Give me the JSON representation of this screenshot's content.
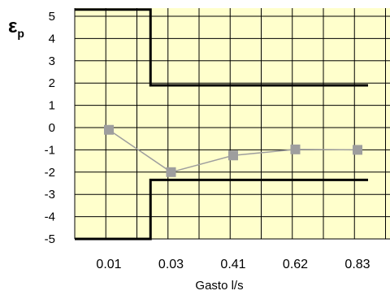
{
  "chart_data": {
    "type": "line",
    "title": "",
    "ylabel": "ε",
    "ylabel_subscript": "p",
    "xlabel": "Gasto l/s",
    "categories": [
      "0.01",
      "0.03",
      "0.41",
      "0.62",
      "0.83"
    ],
    "ylim": [
      -5,
      5
    ],
    "yticks": [
      5,
      4,
      3,
      2,
      1,
      0,
      -1,
      -2,
      -3,
      -4,
      -5
    ],
    "grid": true,
    "plot_background": "#ffffcc",
    "series": [
      {
        "values": [
          -0.1,
          -2.0,
          -1.25,
          -0.98,
          -1.0
        ],
        "color": "#9e9e9e",
        "marker": "square"
      }
    ],
    "limit_lines": {
      "upper": {
        "segments": [
          {
            "from": "start",
            "to": "0.01|0.03 boundary",
            "y": 5.3
          },
          {
            "at": "0.01|0.03 boundary",
            "vertical": true
          },
          {
            "from": "0.01|0.03 boundary",
            "to": "end",
            "y": 1.9
          }
        ]
      },
      "lower": {
        "segments": [
          {
            "from": "start",
            "to": "0.01|0.03 boundary",
            "y": -5.0
          },
          {
            "at": "0.01|0.03 boundary",
            "vertical": true
          },
          {
            "from": "0.01|0.03 boundary",
            "to": "end",
            "y": -2.35
          }
        ]
      },
      "color": "#000000"
    }
  }
}
